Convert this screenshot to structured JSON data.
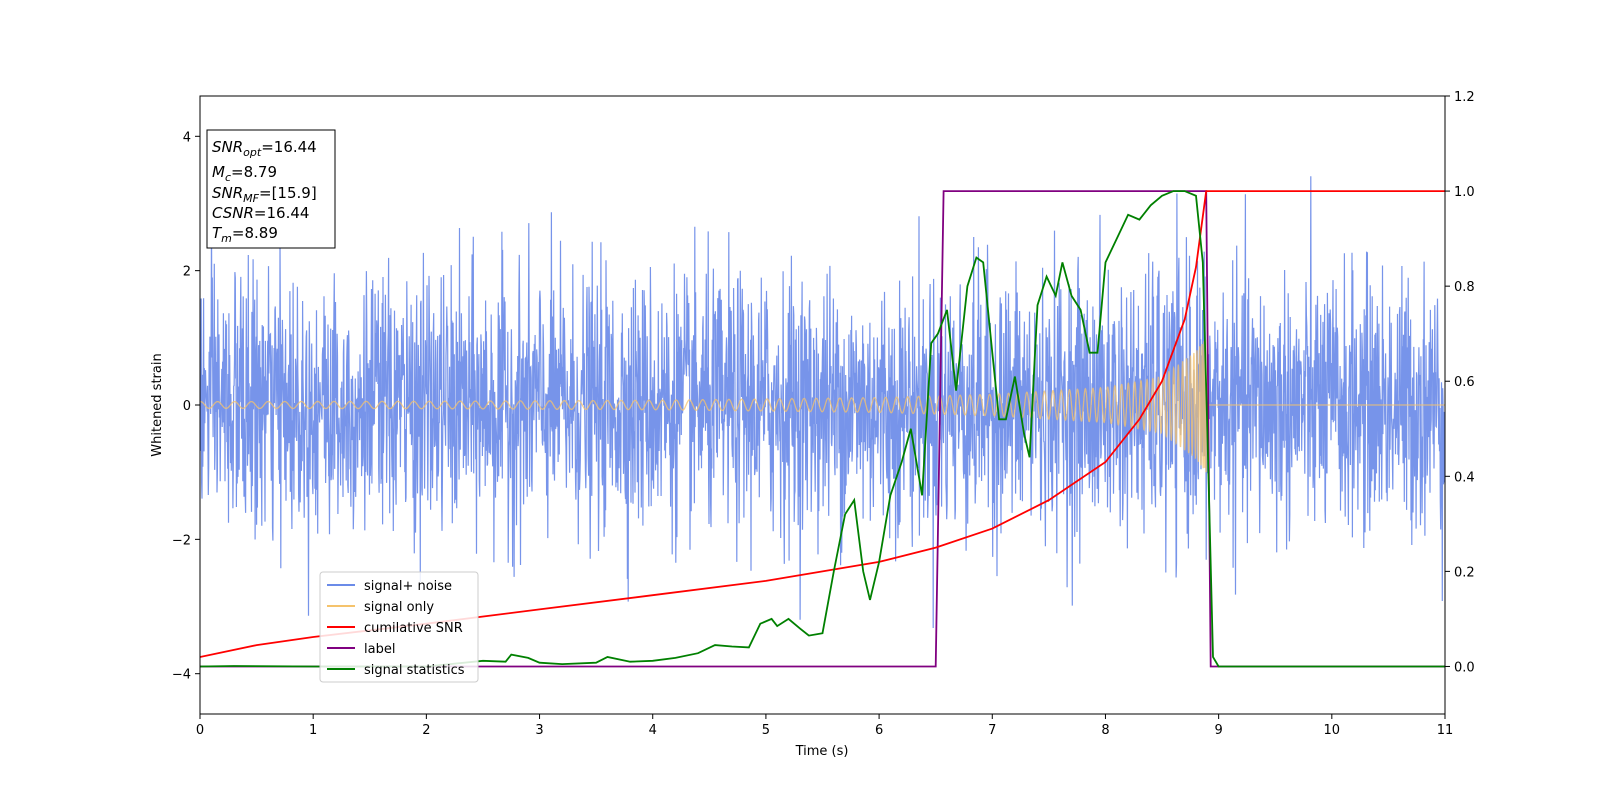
{
  "chart_data": {
    "type": "line",
    "xlabel": "Time (s)",
    "ylabel": "Whitened strain",
    "xlim": [
      0,
      11
    ],
    "ylim": [
      -4.6,
      4.6
    ],
    "y2lim": [
      -0.1,
      1.2
    ],
    "x_ticks": [
      0,
      1,
      2,
      3,
      4,
      5,
      6,
      7,
      8,
      9,
      10,
      11
    ],
    "y_ticks": [
      -4,
      -2,
      0,
      2,
      4
    ],
    "y2_ticks": [
      0.0,
      0.2,
      0.4,
      0.6,
      0.8,
      1.0,
      1.2
    ],
    "legend_position": "lower-left",
    "grid": false,
    "series": [
      {
        "name": "signal+ noise",
        "axis": "left",
        "color": "#6b8be8",
        "kind": "noise-with-signal",
        "noise_std": 0.95,
        "sample_step": 0.0035
      },
      {
        "name": "signal only",
        "axis": "left",
        "color": "#f5c36c",
        "kind": "chirp",
        "merger_time": 8.89,
        "amplitude_start": 0.05,
        "amplitude_end": 1.0,
        "amplitude_samples": [
          {
            "x": 0.0,
            "y": 0.05
          },
          {
            "x": 2.0,
            "y": 0.055
          },
          {
            "x": 4.0,
            "y": 0.07
          },
          {
            "x": 6.0,
            "y": 0.11
          },
          {
            "x": 7.0,
            "y": 0.16
          },
          {
            "x": 8.0,
            "y": 0.26
          },
          {
            "x": 8.5,
            "y": 0.42
          },
          {
            "x": 8.8,
            "y": 0.8
          },
          {
            "x": 8.89,
            "y": 1.0
          }
        ]
      },
      {
        "name": "cumilative SNR",
        "axis": "right",
        "color": "#ff0000",
        "points": [
          {
            "x": 0.0,
            "y": 0.02
          },
          {
            "x": 0.5,
            "y": 0.045
          },
          {
            "x": 1.0,
            "y": 0.062
          },
          {
            "x": 2.0,
            "y": 0.09
          },
          {
            "x": 3.0,
            "y": 0.12
          },
          {
            "x": 4.0,
            "y": 0.15
          },
          {
            "x": 5.0,
            "y": 0.18
          },
          {
            "x": 5.5,
            "y": 0.2
          },
          {
            "x": 6.0,
            "y": 0.22
          },
          {
            "x": 6.5,
            "y": 0.25
          },
          {
            "x": 7.0,
            "y": 0.29
          },
          {
            "x": 7.5,
            "y": 0.35
          },
          {
            "x": 8.0,
            "y": 0.43
          },
          {
            "x": 8.3,
            "y": 0.52
          },
          {
            "x": 8.5,
            "y": 0.6
          },
          {
            "x": 8.7,
            "y": 0.73
          },
          {
            "x": 8.8,
            "y": 0.84
          },
          {
            "x": 8.89,
            "y": 1.0
          },
          {
            "x": 11.0,
            "y": 1.0
          }
        ]
      },
      {
        "name": "label",
        "axis": "right",
        "color": "#800080",
        "points": [
          {
            "x": 0.0,
            "y": 0.0
          },
          {
            "x": 6.5,
            "y": 0.0
          },
          {
            "x": 6.57,
            "y": 1.0
          },
          {
            "x": 8.89,
            "y": 1.0
          },
          {
            "x": 8.93,
            "y": 0.0
          },
          {
            "x": 11.0,
            "y": 0.0
          }
        ]
      },
      {
        "name": "signal statistics",
        "axis": "right",
        "color": "#008000",
        "points": [
          {
            "x": 0.0,
            "y": 0.0
          },
          {
            "x": 0.3,
            "y": 0.001
          },
          {
            "x": 1.0,
            "y": 0.0
          },
          {
            "x": 2.0,
            "y": 0.0
          },
          {
            "x": 2.5,
            "y": 0.012
          },
          {
            "x": 2.7,
            "y": 0.01
          },
          {
            "x": 2.75,
            "y": 0.025
          },
          {
            "x": 2.9,
            "y": 0.018
          },
          {
            "x": 3.0,
            "y": 0.008
          },
          {
            "x": 3.2,
            "y": 0.005
          },
          {
            "x": 3.5,
            "y": 0.008
          },
          {
            "x": 3.6,
            "y": 0.02
          },
          {
            "x": 3.8,
            "y": 0.01
          },
          {
            "x": 4.0,
            "y": 0.012
          },
          {
            "x": 4.2,
            "y": 0.018
          },
          {
            "x": 4.4,
            "y": 0.028
          },
          {
            "x": 4.55,
            "y": 0.045
          },
          {
            "x": 4.7,
            "y": 0.042
          },
          {
            "x": 4.85,
            "y": 0.04
          },
          {
            "x": 4.95,
            "y": 0.09
          },
          {
            "x": 5.05,
            "y": 0.1
          },
          {
            "x": 5.1,
            "y": 0.085
          },
          {
            "x": 5.2,
            "y": 0.1
          },
          {
            "x": 5.3,
            "y": 0.08
          },
          {
            "x": 5.38,
            "y": 0.065
          },
          {
            "x": 5.5,
            "y": 0.07
          },
          {
            "x": 5.6,
            "y": 0.2
          },
          {
            "x": 5.7,
            "y": 0.32
          },
          {
            "x": 5.78,
            "y": 0.35
          },
          {
            "x": 5.86,
            "y": 0.2
          },
          {
            "x": 5.92,
            "y": 0.14
          },
          {
            "x": 6.0,
            "y": 0.22
          },
          {
            "x": 6.1,
            "y": 0.36
          },
          {
            "x": 6.2,
            "y": 0.43
          },
          {
            "x": 6.28,
            "y": 0.5
          },
          {
            "x": 6.38,
            "y": 0.36
          },
          {
            "x": 6.46,
            "y": 0.68
          },
          {
            "x": 6.52,
            "y": 0.7
          },
          {
            "x": 6.6,
            "y": 0.75
          },
          {
            "x": 6.68,
            "y": 0.58
          },
          {
            "x": 6.78,
            "y": 0.8
          },
          {
            "x": 6.86,
            "y": 0.86
          },
          {
            "x": 6.92,
            "y": 0.85
          },
          {
            "x": 7.0,
            "y": 0.66
          },
          {
            "x": 7.06,
            "y": 0.52
          },
          {
            "x": 7.12,
            "y": 0.52
          },
          {
            "x": 7.2,
            "y": 0.61
          },
          {
            "x": 7.28,
            "y": 0.49
          },
          {
            "x": 7.33,
            "y": 0.44
          },
          {
            "x": 7.4,
            "y": 0.76
          },
          {
            "x": 7.48,
            "y": 0.82
          },
          {
            "x": 7.56,
            "y": 0.78
          },
          {
            "x": 7.62,
            "y": 0.85
          },
          {
            "x": 7.7,
            "y": 0.78
          },
          {
            "x": 7.78,
            "y": 0.75
          },
          {
            "x": 7.86,
            "y": 0.66
          },
          {
            "x": 7.93,
            "y": 0.66
          },
          {
            "x": 8.0,
            "y": 0.85
          },
          {
            "x": 8.1,
            "y": 0.9
          },
          {
            "x": 8.2,
            "y": 0.95
          },
          {
            "x": 8.3,
            "y": 0.94
          },
          {
            "x": 8.4,
            "y": 0.97
          },
          {
            "x": 8.5,
            "y": 0.99
          },
          {
            "x": 8.6,
            "y": 1.0
          },
          {
            "x": 8.7,
            "y": 1.0
          },
          {
            "x": 8.8,
            "y": 0.99
          },
          {
            "x": 8.86,
            "y": 0.85
          },
          {
            "x": 8.9,
            "y": 0.5
          },
          {
            "x": 8.95,
            "y": 0.02
          },
          {
            "x": 9.0,
            "y": 0.0
          },
          {
            "x": 11.0,
            "y": 0.0
          }
        ]
      }
    ],
    "annotations": {
      "snr_opt": {
        "prefix": "SNR",
        "sub": "opt",
        "value": "=16.44"
      },
      "mc": {
        "prefix": "M",
        "sub": "c",
        "value": "=8.79"
      },
      "snr_mf": {
        "prefix": "SNR",
        "sub": "MF",
        "value": "=[15.9]"
      },
      "csnr": {
        "prefix": "CSNR",
        "sub": "",
        "value": "=16.44"
      },
      "tm": {
        "prefix": "T",
        "sub": "m",
        "value": "=8.89"
      }
    }
  }
}
